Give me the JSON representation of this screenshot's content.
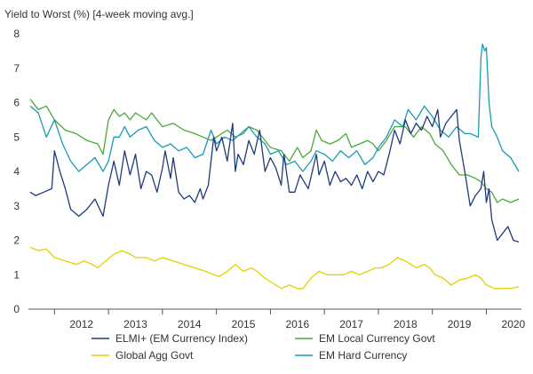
{
  "chart_data": {
    "type": "line",
    "title": "Yield to Worst (%) [4-week moving avg.]",
    "xlabel": "",
    "ylabel": "",
    "ylim": [
      0,
      8
    ],
    "yticks": [
      "0",
      "1",
      "2",
      "3",
      "4",
      "5",
      "6",
      "7",
      "8"
    ],
    "xlim": [
      2011.55,
      2020.65
    ],
    "xticks": [
      "2012",
      "2013",
      "2014",
      "2015",
      "2016",
      "2017",
      "2018",
      "2019",
      "2020"
    ],
    "grid": false,
    "legend_position": "bottom",
    "series": [
      {
        "name": "ELMI+ (EM Currency Index)",
        "color": "#1f3b7a",
        "points": [
          [
            2011.55,
            3.4
          ],
          [
            2011.65,
            3.3
          ],
          [
            2011.8,
            3.4
          ],
          [
            2011.95,
            3.5
          ],
          [
            2012.0,
            4.6
          ],
          [
            2012.1,
            4.0
          ],
          [
            2012.2,
            3.5
          ],
          [
            2012.3,
            2.9
          ],
          [
            2012.45,
            2.7
          ],
          [
            2012.6,
            2.9
          ],
          [
            2012.75,
            3.2
          ],
          [
            2012.9,
            2.7
          ],
          [
            2013.0,
            3.6
          ],
          [
            2013.1,
            4.3
          ],
          [
            2013.2,
            3.6
          ],
          [
            2013.3,
            4.6
          ],
          [
            2013.4,
            3.9
          ],
          [
            2013.5,
            4.5
          ],
          [
            2013.6,
            3.5
          ],
          [
            2013.7,
            4.0
          ],
          [
            2013.8,
            3.9
          ],
          [
            2013.9,
            3.4
          ],
          [
            2014.0,
            4.1
          ],
          [
            2014.05,
            4.6
          ],
          [
            2014.15,
            3.8
          ],
          [
            2014.2,
            4.4
          ],
          [
            2014.3,
            3.4
          ],
          [
            2014.4,
            3.2
          ],
          [
            2014.5,
            3.3
          ],
          [
            2014.6,
            3.1
          ],
          [
            2014.7,
            3.5
          ],
          [
            2014.75,
            3.2
          ],
          [
            2014.85,
            3.6
          ],
          [
            2014.95,
            5.0
          ],
          [
            2015.0,
            4.6
          ],
          [
            2015.1,
            5.0
          ],
          [
            2015.2,
            4.3
          ],
          [
            2015.3,
            5.4
          ],
          [
            2015.35,
            4.0
          ],
          [
            2015.4,
            4.5
          ],
          [
            2015.5,
            4.2
          ],
          [
            2015.6,
            4.9
          ],
          [
            2015.7,
            4.5
          ],
          [
            2015.8,
            5.2
          ],
          [
            2015.9,
            4.0
          ],
          [
            2016.0,
            4.4
          ],
          [
            2016.1,
            4.1
          ],
          [
            2016.2,
            3.6
          ],
          [
            2016.25,
            4.5
          ],
          [
            2016.35,
            3.4
          ],
          [
            2016.45,
            3.4
          ],
          [
            2016.55,
            3.9
          ],
          [
            2016.7,
            3.5
          ],
          [
            2016.85,
            4.5
          ],
          [
            2016.9,
            3.9
          ],
          [
            2017.0,
            4.3
          ],
          [
            2017.1,
            3.6
          ],
          [
            2017.2,
            4.0
          ],
          [
            2017.3,
            3.7
          ],
          [
            2017.4,
            3.8
          ],
          [
            2017.5,
            3.6
          ],
          [
            2017.6,
            3.9
          ],
          [
            2017.7,
            3.5
          ],
          [
            2017.8,
            4.0
          ],
          [
            2017.9,
            3.7
          ],
          [
            2018.0,
            4.0
          ],
          [
            2018.1,
            3.9
          ],
          [
            2018.2,
            4.5
          ],
          [
            2018.3,
            5.2
          ],
          [
            2018.4,
            4.8
          ],
          [
            2018.5,
            5.5
          ],
          [
            2018.6,
            5.1
          ],
          [
            2018.7,
            5.4
          ],
          [
            2018.8,
            5.2
          ],
          [
            2018.9,
            5.6
          ],
          [
            2019.0,
            5.3
          ],
          [
            2019.1,
            5.8
          ],
          [
            2019.15,
            5.0
          ],
          [
            2019.25,
            5.4
          ],
          [
            2019.35,
            5.6
          ],
          [
            2019.45,
            5.8
          ],
          [
            2019.5,
            4.9
          ],
          [
            2019.6,
            4.0
          ],
          [
            2019.7,
            3.0
          ],
          [
            2019.8,
            3.3
          ],
          [
            2019.9,
            3.5
          ],
          [
            2019.95,
            4.0
          ],
          [
            2020.0,
            3.1
          ],
          [
            2020.05,
            3.5
          ],
          [
            2020.1,
            2.6
          ],
          [
            2020.2,
            2.0
          ],
          [
            2020.3,
            2.2
          ],
          [
            2020.4,
            2.4
          ],
          [
            2020.5,
            2.0
          ],
          [
            2020.6,
            1.95
          ]
        ]
      },
      {
        "name": "EM Local Currency Govt",
        "color": "#4ca83a",
        "points": [
          [
            2011.55,
            6.1
          ],
          [
            2011.7,
            5.8
          ],
          [
            2011.85,
            5.9
          ],
          [
            2012.0,
            5.5
          ],
          [
            2012.2,
            5.2
          ],
          [
            2012.4,
            5.1
          ],
          [
            2012.6,
            4.9
          ],
          [
            2012.8,
            4.8
          ],
          [
            2012.9,
            4.5
          ],
          [
            2013.0,
            5.5
          ],
          [
            2013.1,
            5.8
          ],
          [
            2013.2,
            5.6
          ],
          [
            2013.3,
            5.7
          ],
          [
            2013.4,
            5.5
          ],
          [
            2013.5,
            5.7
          ],
          [
            2013.6,
            5.6
          ],
          [
            2013.7,
            5.5
          ],
          [
            2013.8,
            5.7
          ],
          [
            2013.9,
            5.5
          ],
          [
            2014.0,
            5.3
          ],
          [
            2014.2,
            5.4
          ],
          [
            2014.4,
            5.2
          ],
          [
            2014.6,
            5.1
          ],
          [
            2014.75,
            5.0
          ],
          [
            2014.9,
            4.9
          ],
          [
            2015.0,
            5.0
          ],
          [
            2015.2,
            5.2
          ],
          [
            2015.35,
            5.0
          ],
          [
            2015.5,
            5.1
          ],
          [
            2015.6,
            5.3
          ],
          [
            2015.75,
            5.2
          ],
          [
            2015.9,
            4.9
          ],
          [
            2016.0,
            4.7
          ],
          [
            2016.2,
            4.6
          ],
          [
            2016.35,
            4.3
          ],
          [
            2016.5,
            4.7
          ],
          [
            2016.6,
            4.4
          ],
          [
            2016.75,
            4.6
          ],
          [
            2016.85,
            5.2
          ],
          [
            2016.95,
            4.9
          ],
          [
            2017.1,
            4.8
          ],
          [
            2017.25,
            4.9
          ],
          [
            2017.4,
            5.1
          ],
          [
            2017.5,
            4.7
          ],
          [
            2017.65,
            4.8
          ],
          [
            2017.8,
            4.9
          ],
          [
            2017.9,
            4.8
          ],
          [
            2018.0,
            4.6
          ],
          [
            2018.15,
            4.9
          ],
          [
            2018.3,
            5.3
          ],
          [
            2018.5,
            5.3
          ],
          [
            2018.65,
            5.0
          ],
          [
            2018.8,
            5.3
          ],
          [
            2018.95,
            5.1
          ],
          [
            2019.05,
            4.8
          ],
          [
            2019.2,
            4.6
          ],
          [
            2019.35,
            4.2
          ],
          [
            2019.5,
            3.9
          ],
          [
            2019.65,
            3.9
          ],
          [
            2019.8,
            3.8
          ],
          [
            2019.9,
            3.7
          ],
          [
            2020.0,
            3.5
          ],
          [
            2020.1,
            3.4
          ],
          [
            2020.2,
            3.1
          ],
          [
            2020.3,
            3.2
          ],
          [
            2020.45,
            3.1
          ],
          [
            2020.6,
            3.2
          ]
        ]
      },
      {
        "name": "Global Agg Govt",
        "color": "#e5d000",
        "points": [
          [
            2011.55,
            1.8
          ],
          [
            2011.7,
            1.7
          ],
          [
            2011.85,
            1.75
          ],
          [
            2012.0,
            1.5
          ],
          [
            2012.2,
            1.4
          ],
          [
            2012.4,
            1.3
          ],
          [
            2012.55,
            1.4
          ],
          [
            2012.7,
            1.3
          ],
          [
            2012.8,
            1.2
          ],
          [
            2012.95,
            1.4
          ],
          [
            2013.1,
            1.6
          ],
          [
            2013.25,
            1.7
          ],
          [
            2013.4,
            1.6
          ],
          [
            2013.5,
            1.5
          ],
          [
            2013.7,
            1.5
          ],
          [
            2013.85,
            1.4
          ],
          [
            2014.0,
            1.5
          ],
          [
            2014.2,
            1.4
          ],
          [
            2014.4,
            1.3
          ],
          [
            2014.6,
            1.2
          ],
          [
            2014.8,
            1.1
          ],
          [
            2014.95,
            1.0
          ],
          [
            2015.05,
            0.95
          ],
          [
            2015.2,
            1.1
          ],
          [
            2015.35,
            1.3
          ],
          [
            2015.5,
            1.1
          ],
          [
            2015.65,
            1.2
          ],
          [
            2015.75,
            1.1
          ],
          [
            2015.9,
            0.9
          ],
          [
            2016.0,
            0.8
          ],
          [
            2016.2,
            0.6
          ],
          [
            2016.35,
            0.7
          ],
          [
            2016.5,
            0.6
          ],
          [
            2016.6,
            0.6
          ],
          [
            2016.75,
            0.9
          ],
          [
            2016.9,
            1.1
          ],
          [
            2017.05,
            1.0
          ],
          [
            2017.2,
            1.0
          ],
          [
            2017.35,
            1.0
          ],
          [
            2017.5,
            1.1
          ],
          [
            2017.65,
            1.0
          ],
          [
            2017.8,
            1.1
          ],
          [
            2017.95,
            1.2
          ],
          [
            2018.05,
            1.2
          ],
          [
            2018.2,
            1.3
          ],
          [
            2018.35,
            1.5
          ],
          [
            2018.5,
            1.4
          ],
          [
            2018.7,
            1.2
          ],
          [
            2018.85,
            1.3
          ],
          [
            2018.95,
            1.2
          ],
          [
            2019.05,
            1.0
          ],
          [
            2019.2,
            0.9
          ],
          [
            2019.35,
            0.7
          ],
          [
            2019.5,
            0.85
          ],
          [
            2019.65,
            0.9
          ],
          [
            2019.8,
            1.0
          ],
          [
            2019.9,
            0.9
          ],
          [
            2020.0,
            0.7
          ],
          [
            2020.15,
            0.6
          ],
          [
            2020.3,
            0.6
          ],
          [
            2020.45,
            0.6
          ],
          [
            2020.6,
            0.65
          ]
        ]
      },
      {
        "name": "EM Hard Currency",
        "color": "#1a9bb5",
        "points": [
          [
            2011.55,
            5.9
          ],
          [
            2011.7,
            5.7
          ],
          [
            2011.85,
            5.0
          ],
          [
            2012.0,
            5.5
          ],
          [
            2012.15,
            4.8
          ],
          [
            2012.3,
            4.3
          ],
          [
            2012.45,
            4.0
          ],
          [
            2012.6,
            4.2
          ],
          [
            2012.75,
            4.4
          ],
          [
            2012.9,
            4.0
          ],
          [
            2013.0,
            4.3
          ],
          [
            2013.1,
            5.0
          ],
          [
            2013.2,
            5.0
          ],
          [
            2013.3,
            5.3
          ],
          [
            2013.4,
            5.0
          ],
          [
            2013.55,
            5.2
          ],
          [
            2013.7,
            5.3
          ],
          [
            2013.85,
            4.9
          ],
          [
            2014.0,
            4.7
          ],
          [
            2014.15,
            4.8
          ],
          [
            2014.3,
            4.6
          ],
          [
            2014.45,
            4.7
          ],
          [
            2014.6,
            4.4
          ],
          [
            2014.75,
            4.5
          ],
          [
            2014.9,
            5.2
          ],
          [
            2015.0,
            4.8
          ],
          [
            2015.15,
            5.0
          ],
          [
            2015.3,
            4.9
          ],
          [
            2015.45,
            5.1
          ],
          [
            2015.6,
            5.3
          ],
          [
            2015.75,
            5.0
          ],
          [
            2015.9,
            4.8
          ],
          [
            2016.0,
            4.5
          ],
          [
            2016.15,
            4.6
          ],
          [
            2016.3,
            4.2
          ],
          [
            2016.45,
            4.3
          ],
          [
            2016.6,
            4.0
          ],
          [
            2016.75,
            4.3
          ],
          [
            2016.85,
            4.6
          ],
          [
            2017.0,
            4.5
          ],
          [
            2017.15,
            4.3
          ],
          [
            2017.3,
            4.6
          ],
          [
            2017.45,
            4.4
          ],
          [
            2017.6,
            4.6
          ],
          [
            2017.75,
            4.2
          ],
          [
            2017.9,
            4.4
          ],
          [
            2018.0,
            4.7
          ],
          [
            2018.15,
            5.0
          ],
          [
            2018.3,
            5.5
          ],
          [
            2018.45,
            5.3
          ],
          [
            2018.55,
            5.8
          ],
          [
            2018.7,
            5.5
          ],
          [
            2018.85,
            5.9
          ],
          [
            2019.0,
            5.6
          ],
          [
            2019.15,
            5.2
          ],
          [
            2019.3,
            5.0
          ],
          [
            2019.45,
            5.3
          ],
          [
            2019.6,
            5.1
          ],
          [
            2019.7,
            5.1
          ],
          [
            2019.85,
            5.0
          ],
          [
            2019.9,
            7.3
          ],
          [
            2019.93,
            7.7
          ],
          [
            2019.97,
            7.5
          ],
          [
            2020.0,
            7.6
          ],
          [
            2020.05,
            6.0
          ],
          [
            2020.1,
            5.3
          ],
          [
            2020.2,
            5.0
          ],
          [
            2020.3,
            4.6
          ],
          [
            2020.45,
            4.4
          ],
          [
            2020.6,
            4.0
          ]
        ]
      }
    ]
  }
}
